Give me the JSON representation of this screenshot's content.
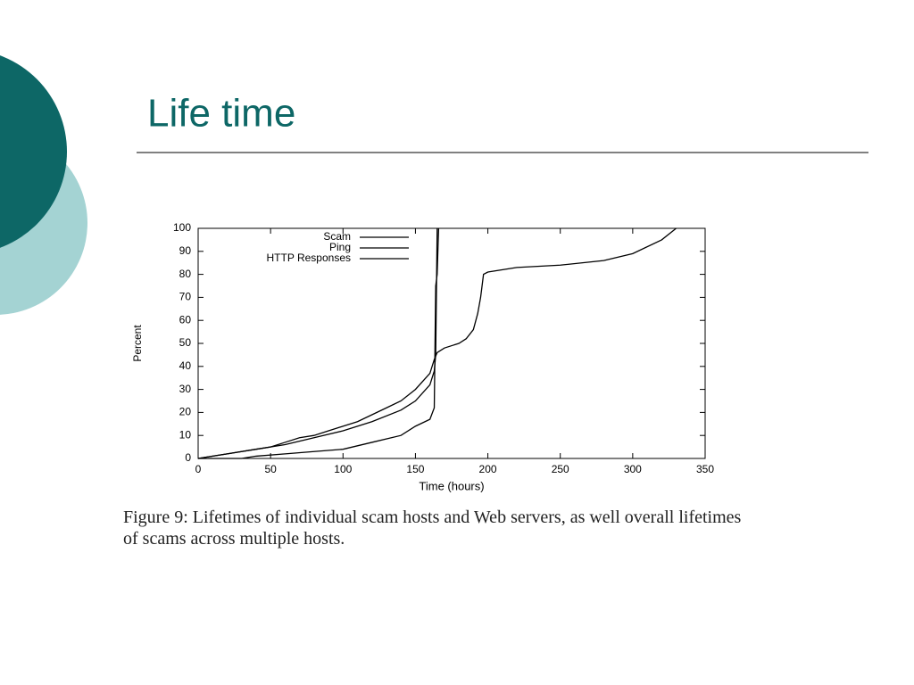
{
  "title": "Life time",
  "caption": "Figure 9: Lifetimes of individual scam hosts and Web servers, as well overall lifetimes of scams across multiple hosts.",
  "chart_data": {
    "type": "line",
    "xlabel": "Time (hours)",
    "ylabel": "Percent",
    "xlim": [
      0,
      350
    ],
    "ylim": [
      0,
      100
    ],
    "xticks": [
      0,
      50,
      100,
      150,
      200,
      250,
      300,
      350
    ],
    "yticks": [
      0,
      10,
      20,
      30,
      40,
      50,
      60,
      70,
      80,
      90,
      100
    ],
    "legend": "top-center",
    "series": [
      {
        "name": "Scam",
        "color": "#000000",
        "x": [
          0,
          10,
          20,
          30,
          40,
          50,
          60,
          70,
          80,
          90,
          100,
          110,
          120,
          130,
          140,
          150,
          160,
          163,
          165,
          170,
          180,
          185,
          190,
          193,
          195,
          197,
          200,
          220,
          250,
          280,
          300,
          320,
          330
        ],
        "values": [
          0,
          1,
          2,
          3,
          4,
          5,
          7,
          9,
          10,
          12,
          14,
          16,
          19,
          22,
          25,
          30,
          37,
          43,
          46,
          48,
          50,
          52,
          56,
          63,
          70,
          80,
          81,
          83,
          84,
          86,
          89,
          95,
          100
        ]
      },
      {
        "name": "Ping",
        "color": "#000000",
        "x": [
          0,
          20,
          40,
          60,
          80,
          100,
          120,
          140,
          150,
          160,
          163,
          164,
          165
        ],
        "values": [
          0,
          2,
          4,
          6,
          9,
          12,
          16,
          21,
          25,
          32,
          38,
          45,
          100
        ]
      },
      {
        "name": "HTTP Responses",
        "color": "#000000",
        "x": [
          0,
          30,
          40,
          60,
          80,
          100,
          120,
          140,
          150,
          160,
          163,
          164,
          165,
          166
        ],
        "values": [
          0,
          0,
          1,
          2,
          3,
          4,
          7,
          10,
          14,
          17,
          22,
          75,
          80,
          100
        ]
      }
    ]
  }
}
